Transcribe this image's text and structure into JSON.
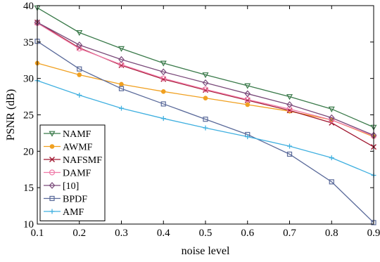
{
  "chart_data": {
    "type": "line",
    "title": "",
    "xlabel": "noise level",
    "ylabel": "PSNR (dB)",
    "xlim": [
      0.1,
      0.9
    ],
    "ylim": [
      10,
      40
    ],
    "grid": false,
    "legend_position": "bottom-left",
    "x": [
      0.1,
      0.2,
      0.3,
      0.4,
      0.5,
      0.6,
      0.7,
      0.8,
      0.9
    ],
    "x_ticks": [
      "0.1",
      "0.2",
      "0.3",
      "0.4",
      "0.5",
      "0.6",
      "0.7",
      "0.8",
      "0.9"
    ],
    "y_ticks": [
      "10",
      "15",
      "20",
      "25",
      "30",
      "35",
      "40"
    ],
    "series": [
      {
        "name": "NAMF",
        "color": "#3a7a4a",
        "marker": "triangle-down",
        "values": [
          39.7,
          36.3,
          34.1,
          32.1,
          30.5,
          29.0,
          27.5,
          25.8,
          23.3
        ]
      },
      {
        "name": "AWMF",
        "color": "#f0a020",
        "marker": "dot",
        "values": [
          32.1,
          30.5,
          29.2,
          28.2,
          27.3,
          26.4,
          25.5,
          24.3,
          22.0
        ]
      },
      {
        "name": "NAFSMF",
        "color": "#a01830",
        "marker": "x",
        "values": [
          37.7,
          34.2,
          31.8,
          29.9,
          28.4,
          27.0,
          25.6,
          23.9,
          20.6
        ]
      },
      {
        "name": "DAMF",
        "color": "#f07aa8",
        "marker": "circle",
        "values": [
          37.6,
          34.1,
          31.9,
          30.0,
          28.5,
          27.1,
          25.8,
          24.3,
          22.1
        ]
      },
      {
        "name": "[10]",
        "color": "#7a4a7a",
        "marker": "diamond",
        "values": [
          37.7,
          34.6,
          32.6,
          30.9,
          29.4,
          27.9,
          26.4,
          24.6,
          22.2
        ]
      },
      {
        "name": "BPDF",
        "color": "#5a6a9a",
        "marker": "square",
        "values": [
          35.1,
          31.3,
          28.6,
          26.5,
          24.4,
          22.3,
          19.6,
          15.8,
          10.2
        ]
      },
      {
        "name": "AMF",
        "color": "#40b0e0",
        "marker": "plus",
        "values": [
          29.7,
          27.7,
          25.9,
          24.5,
          23.2,
          22.0,
          20.7,
          19.1,
          16.7
        ]
      }
    ]
  }
}
